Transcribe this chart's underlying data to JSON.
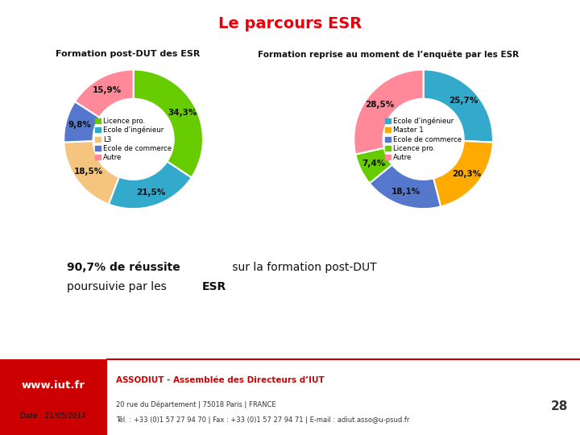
{
  "title": "Le parcours ESR",
  "title_color": "#e8000d",
  "chart1_title": "Formation post-DUT des ESR",
  "chart2_title": "Formation reprise au moment de l’enquête par les ESR",
  "chart1_labels": [
    "Licence pro.",
    "Ecole d’ingénieur",
    "L3",
    "Ecole de commerce",
    "Autre"
  ],
  "chart1_values": [
    34.3,
    21.5,
    18.5,
    9.8,
    15.9
  ],
  "chart1_colors": [
    "#66cc00",
    "#33aacc",
    "#f5c580",
    "#5577cc",
    "#ff8899"
  ],
  "chart1_pct_labels": [
    "34,3%",
    "21,5%",
    "18,5%",
    "9,8%",
    "15,9%"
  ],
  "chart2_labels": [
    "Ecole d’ingénieur",
    "Master 1",
    "Ecole de commerce",
    "Licence pro.",
    "Autre"
  ],
  "chart2_values": [
    25.7,
    20.3,
    18.1,
    7.4,
    28.5
  ],
  "chart2_colors": [
    "#33aacc",
    "#ffaa00",
    "#5577cc",
    "#66cc00",
    "#ff8899"
  ],
  "chart2_pct_labels": [
    "25,7%",
    "20,3%",
    "18,1%",
    "7,4%",
    "28,5%"
  ],
  "footer_url": "www.iut.fr",
  "footer_org": "ASSODIUT - Assemblée des Directeurs d’IUT",
  "footer_addr": "20 rue du Département | 75018 Paris | FRANCE",
  "footer_tel": "Tél. : +33 (0)1 57 27 94 70 | Fax : +33 (0)1 57 27 94 71 | E-mail : adiut.asso@u-psud.fr",
  "footer_num": "28",
  "bg_color": "#ffffff",
  "footer_red": "#cc0000"
}
